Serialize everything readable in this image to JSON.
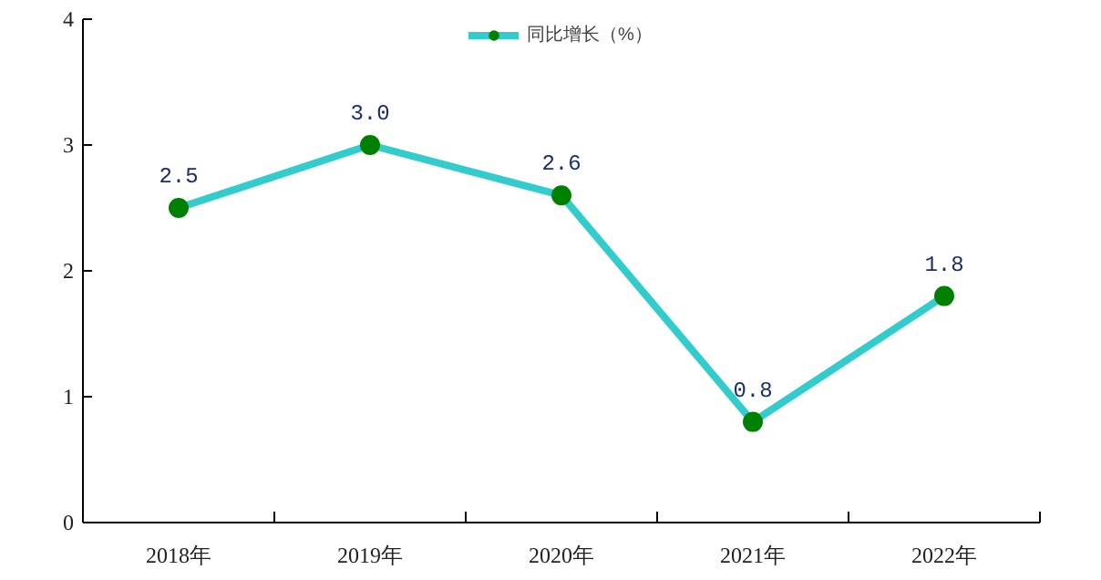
{
  "chart_data": {
    "type": "line",
    "categories": [
      "2018年",
      "2019年",
      "2020年",
      "2021年",
      "2022年"
    ],
    "series": [
      {
        "name": "同比增长（%）",
        "color": "#33cccc",
        "value_labels": [
          "2.5",
          "3.0",
          "2.6",
          "0.8",
          "1.8"
        ],
        "colors": [
          "#008000",
          "#008000",
          "#008000",
          "#008000",
          "#008000"
        ],
        "values": [
          2.5,
          3.0,
          2.6,
          0.8,
          1.8
        ]
      }
    ],
    "ylim": [
      0,
      4
    ],
    "yticks": [
      0,
      1,
      2,
      3,
      4
    ],
    "grid": false,
    "legend": "top",
    "marker": "circle",
    "line_style": "solid"
  }
}
